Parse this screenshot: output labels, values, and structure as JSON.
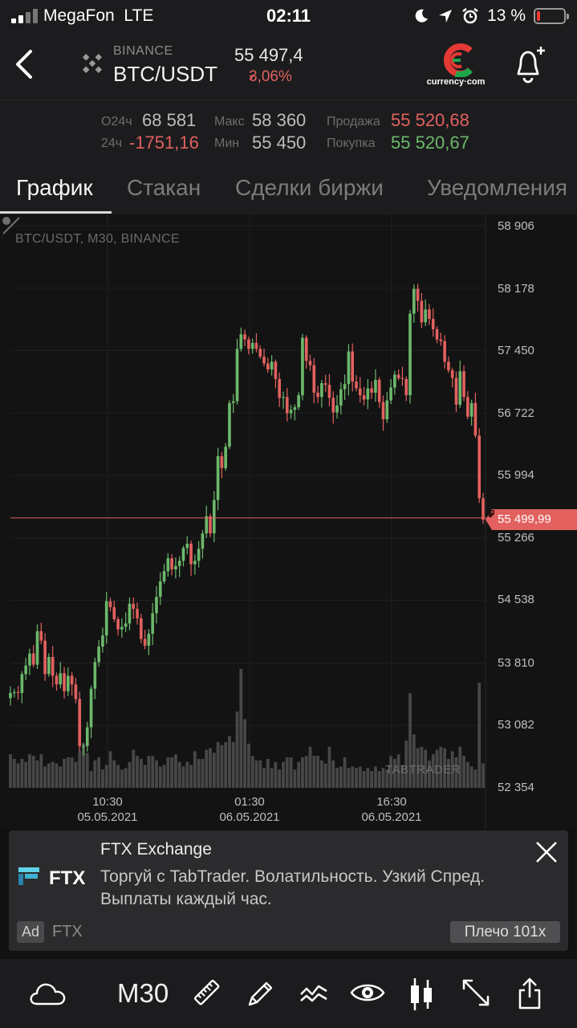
{
  "status_bar": {
    "carrier": "MegaFon",
    "network": "LTE",
    "time": "02:11",
    "battery_percent": "13 %",
    "battery_level": 0.13,
    "icons": [
      "signal-icon",
      "moon-icon",
      "location-arrow-icon",
      "alarm-icon",
      "battery-icon"
    ]
  },
  "header": {
    "exchange": "BINANCE",
    "pair": "BTC/USDT",
    "price": "55 497,4",
    "change": "3,06%",
    "change_direction": "down",
    "partner_logo_text": "currency·com",
    "icons": [
      "back-icon",
      "binance-logo-icon",
      "currency-com-logo-icon",
      "bell-plus-icon"
    ]
  },
  "stats": {
    "open_label": "O24ч",
    "open_value": "68 581",
    "change24_label": "24ч",
    "change24_value": "-1751,16",
    "high_label": "Макс",
    "high_value": "58 360",
    "low_label": "Мин",
    "low_value": "55 450",
    "sell_label": "Продажа",
    "sell_value": "55 520,68",
    "buy_label": "Покупка",
    "buy_value": "55 520,67"
  },
  "tabs": [
    {
      "label": "График",
      "active": true
    },
    {
      "label": "Стакан",
      "active": false
    },
    {
      "label": "Сделки биржи",
      "active": false
    },
    {
      "label": "Уведомления",
      "active": false
    }
  ],
  "chart": {
    "title": "BTC/USDT, M30, BINANCE",
    "y_ticks": [
      "58 906",
      "58 178",
      "57 450",
      "56 722",
      "55 994",
      "55 266",
      "54 538",
      "53 810",
      "53 082",
      "52 354"
    ],
    "x_ticks": [
      {
        "time": "10:30",
        "date": "05.05.2021"
      },
      {
        "time": "01:30",
        "date": "06.05.2021"
      },
      {
        "time": "16:30",
        "date": "06.05.2021"
      }
    ],
    "last_price": "55 499,99",
    "watermark": "TABTRADER",
    "up_color": "#6cb86b",
    "down_color": "#e2615f"
  },
  "chart_data": {
    "type": "candlestick",
    "title": "BTC/USDT, M30, BINANCE",
    "ylim": [
      52354,
      58906
    ],
    "interval": "M30",
    "close": [
      53460,
      53470,
      53460,
      53680,
      53780,
      53920,
      53790,
      54180,
      54070,
      53680,
      53880,
      53660,
      53560,
      53690,
      53480,
      53660,
      53560,
      53390,
      52840,
      52840,
      53060,
      53510,
      53820,
      54000,
      54130,
      54530,
      54460,
      54320,
      54200,
      54230,
      54270,
      54500,
      54440,
      54330,
      54090,
      54010,
      54150,
      54390,
      54580,
      54760,
      54880,
      55030,
      54900,
      54940,
      55000,
      55150,
      55200,
      54960,
      55000,
      55140,
      55320,
      55520,
      55320,
      55710,
      56220,
      56080,
      56330,
      56840,
      56860,
      57470,
      57640,
      57580,
      57470,
      57540,
      57470,
      57380,
      57300,
      57230,
      57320,
      57120,
      56900,
      56910,
      56720,
      56760,
      56790,
      56930,
      57600,
      57330,
      57280,
      56960,
      56910,
      57070,
      57050,
      56900,
      56730,
      56810,
      57000,
      57060,
      57440,
      57090,
      57010,
      56930,
      56880,
      57010,
      56960,
      57110,
      56850,
      56650,
      56870,
      57020,
      57170,
      57130,
      57120,
      56930,
      57880,
      58170,
      58030,
      57780,
      57930,
      57820,
      57700,
      57580,
      57560,
      57320,
      57220,
      57130,
      56820,
      57210,
      56910,
      56680,
      56840,
      56460,
      55730,
      55480
    ],
    "volume_relative": [
      0.22,
      0.19,
      0.16,
      0.19,
      0.17,
      0.22,
      0.21,
      0.18,
      0.22,
      0.14,
      0.16,
      0.17,
      0.16,
      0.14,
      0.19,
      0.2,
      0.2,
      0.17,
      0.24,
      0.29,
      0.23,
      0.11,
      0.18,
      0.2,
      0.12,
      0.15,
      0.24,
      0.18,
      0.15,
      0.12,
      0.13,
      0.17,
      0.25,
      0.21,
      0.19,
      0.15,
      0.21,
      0.21,
      0.18,
      0.14,
      0.15,
      0.2,
      0.2,
      0.22,
      0.17,
      0.14,
      0.17,
      0.15,
      0.24,
      0.19,
      0.19,
      0.25,
      0.26,
      0.23,
      0.3,
      0.28,
      0.3,
      0.34,
      0.3,
      0.5,
      0.78,
      0.45,
      0.29,
      0.21,
      0.18,
      0.18,
      0.13,
      0.19,
      0.13,
      0.17,
      0.12,
      0.17,
      0.2,
      0.2,
      0.12,
      0.17,
      0.2,
      0.21,
      0.27,
      0.21,
      0.21,
      0.18,
      0.16,
      0.27,
      0.18,
      0.13,
      0.14,
      0.2,
      0.13,
      0.14,
      0.13,
      0.14,
      0.11,
      0.13,
      0.11,
      0.14,
      0.11,
      0.13,
      0.12,
      0.21,
      0.19,
      0.22,
      0.15,
      0.31,
      0.62,
      0.35,
      0.26,
      0.27,
      0.25,
      0.18,
      0.22,
      0.25,
      0.27,
      0.26,
      0.19,
      0.24,
      0.2,
      0.27,
      0.21,
      0.17,
      0.14,
      0.12,
      0.69,
      0.16
    ]
  },
  "ad": {
    "title": "FTX Exchange",
    "text": "Торгуй с TabTrader. Волатильность. Узкий Спред. Выплаты каждый час.",
    "logo_text": "FTX",
    "badge": "Ad",
    "advertiser": "FTX",
    "cta": "Плечо 101x"
  },
  "toolbar": {
    "timeframe": "M30",
    "icons": [
      "cloud-icon",
      "ruler-icon",
      "pencil-icon",
      "indicators-icon",
      "eye-icon",
      "candles-icon",
      "fullscreen-icon",
      "share-icon"
    ]
  }
}
